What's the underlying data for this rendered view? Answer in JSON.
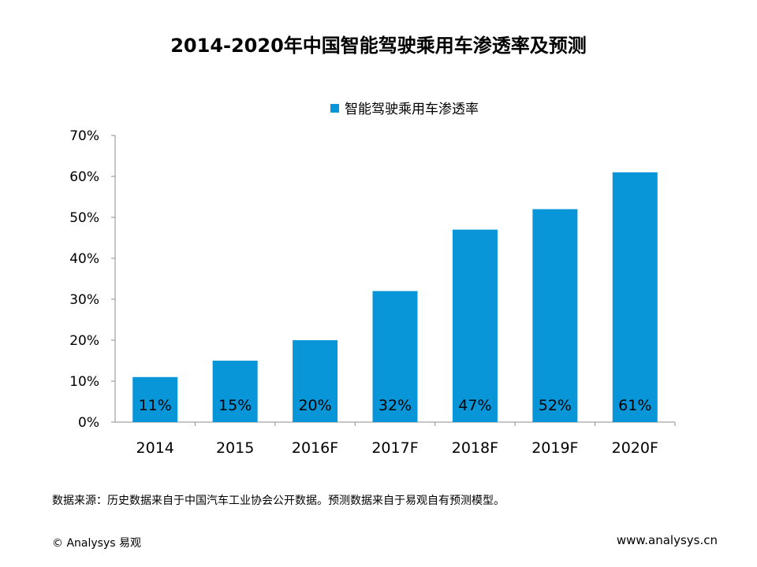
{
  "page": {
    "title": "2014-2020年中国智能驾驶乘用车渗透率及预测",
    "source": "数据来源：历史数据来自于中国汽车工业协会公开数据。预测数据来自于易观自有预测模型。",
    "copyright": "© Analysys  易观",
    "website": "www.analysys.cn"
  },
  "chart_data": {
    "type": "bar",
    "title": "2014-2020年中国智能驾驶乘用车渗透率及预测",
    "xlabel": "",
    "ylabel": "",
    "categories": [
      "2014",
      "2015",
      "2016F",
      "2017F",
      "2018F",
      "2019F",
      "2020F"
    ],
    "series": [
      {
        "name": "智能驾驶乘用车渗透率",
        "values": [
          11,
          15,
          20,
          32,
          47,
          52,
          61
        ],
        "labels": [
          "11%",
          "15%",
          "20%",
          "32%",
          "47%",
          "52%",
          "61%"
        ],
        "color": "#0996d9"
      }
    ],
    "ylim": [
      0,
      70
    ],
    "yticks": [
      0,
      10,
      20,
      30,
      40,
      50,
      60,
      70
    ],
    "ytick_labels": [
      "0%",
      "10%",
      "20%",
      "30%",
      "40%",
      "50%",
      "60%",
      "70%"
    ],
    "legend_position": "top",
    "grid": false
  }
}
